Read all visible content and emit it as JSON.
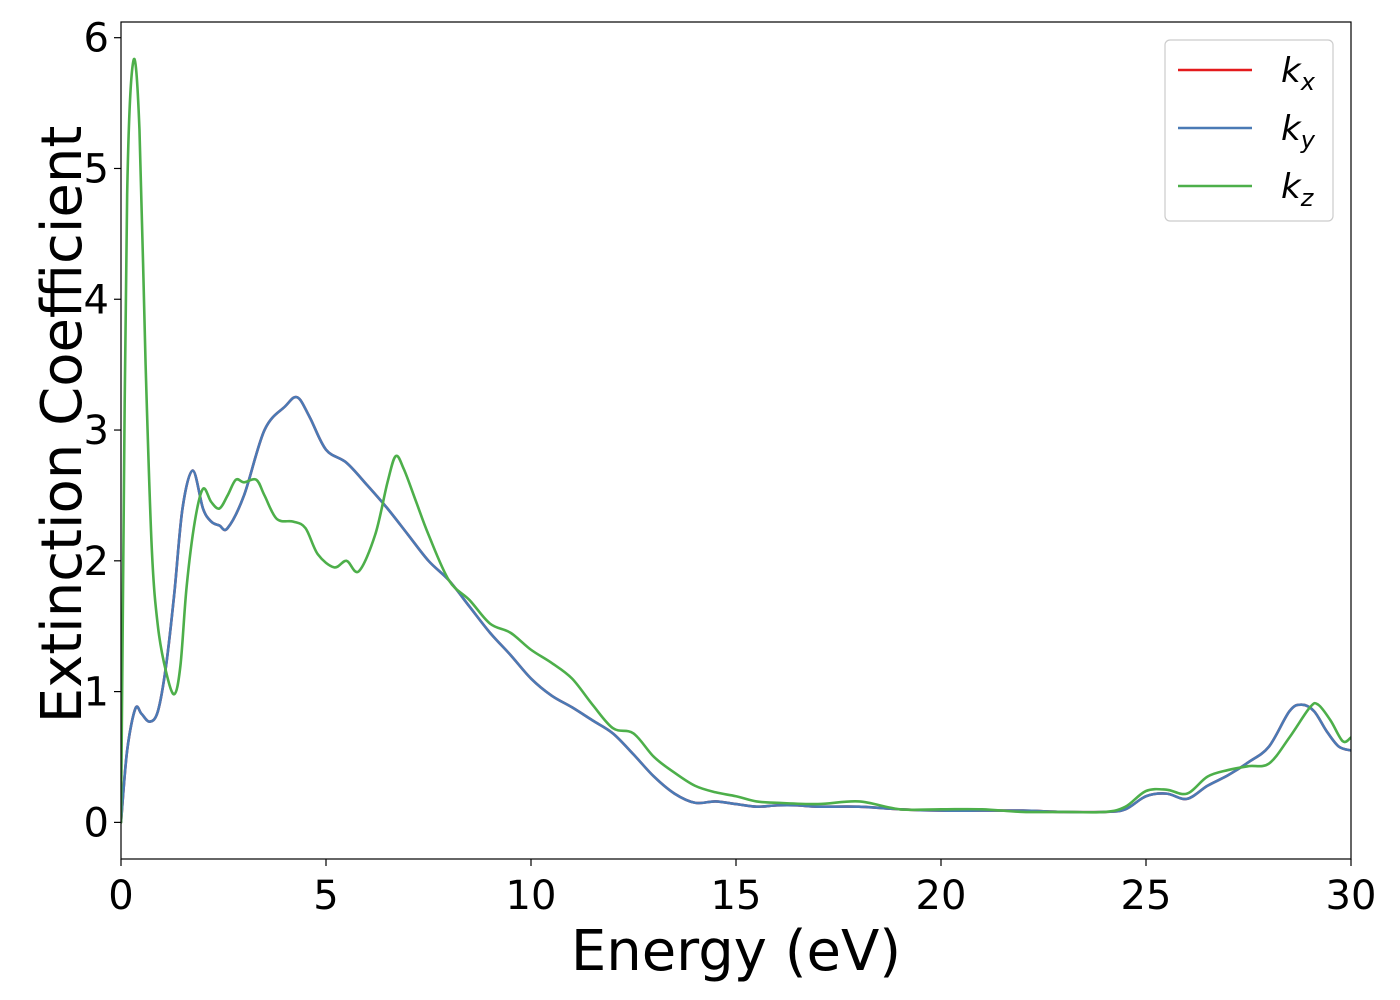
{
  "chart_data": {
    "type": "line",
    "xlabel": "Energy (eV)",
    "ylabel": "Extinction Coefficient",
    "xlim": [
      0,
      30
    ],
    "ylim": [
      -0.28,
      6.12
    ],
    "xticks": [
      0,
      5,
      10,
      15,
      20,
      25,
      30
    ],
    "yticks": [
      0,
      1,
      2,
      3,
      4,
      5,
      6
    ],
    "grid": false,
    "legend_position": "top-right",
    "series": [
      {
        "name": "k_x",
        "label_base": "k",
        "label_sub": "x",
        "color": "#e41a1c",
        "x": [
          0,
          0.15,
          0.35,
          0.5,
          0.7,
          0.9,
          1.1,
          1.3,
          1.5,
          1.75,
          2.0,
          2.2,
          2.4,
          2.6,
          3.0,
          3.5,
          4.0,
          4.3,
          4.6,
          5.0,
          5.5,
          6.0,
          6.5,
          7.0,
          7.5,
          8.0,
          8.5,
          9.0,
          9.5,
          10.0,
          10.5,
          11.0,
          11.5,
          12.0,
          12.5,
          13.0,
          13.5,
          14.0,
          14.5,
          15.0,
          15.5,
          16.0,
          16.5,
          17.0,
          18.0,
          19.0,
          20.0,
          21.0,
          22.0,
          23.0,
          24.0,
          24.5,
          25.0,
          25.5,
          26.0,
          26.5,
          27.0,
          27.5,
          28.0,
          28.5,
          28.8,
          29.1,
          29.4,
          29.7,
          30.0
        ],
        "y": [
          0.0,
          0.55,
          0.87,
          0.83,
          0.77,
          0.85,
          1.2,
          1.75,
          2.4,
          2.69,
          2.4,
          2.3,
          2.27,
          2.25,
          2.5,
          3.0,
          3.18,
          3.25,
          3.1,
          2.85,
          2.75,
          2.58,
          2.4,
          2.2,
          2.0,
          1.85,
          1.65,
          1.45,
          1.28,
          1.1,
          0.97,
          0.88,
          0.78,
          0.68,
          0.52,
          0.35,
          0.22,
          0.15,
          0.16,
          0.14,
          0.12,
          0.13,
          0.13,
          0.12,
          0.12,
          0.1,
          0.09,
          0.09,
          0.09,
          0.08,
          0.08,
          0.1,
          0.2,
          0.22,
          0.18,
          0.28,
          0.36,
          0.46,
          0.58,
          0.85,
          0.9,
          0.85,
          0.7,
          0.58,
          0.55
        ]
      },
      {
        "name": "k_y",
        "label_base": "k",
        "label_sub": "y",
        "color": "#4a7ab5",
        "x": [
          0,
          0.15,
          0.35,
          0.5,
          0.7,
          0.9,
          1.1,
          1.3,
          1.5,
          1.75,
          2.0,
          2.2,
          2.4,
          2.6,
          3.0,
          3.5,
          4.0,
          4.3,
          4.6,
          5.0,
          5.5,
          6.0,
          6.5,
          7.0,
          7.5,
          8.0,
          8.5,
          9.0,
          9.5,
          10.0,
          10.5,
          11.0,
          11.5,
          12.0,
          12.5,
          13.0,
          13.5,
          14.0,
          14.5,
          15.0,
          15.5,
          16.0,
          16.5,
          17.0,
          18.0,
          19.0,
          20.0,
          21.0,
          22.0,
          23.0,
          24.0,
          24.5,
          25.0,
          25.5,
          26.0,
          26.5,
          27.0,
          27.5,
          28.0,
          28.5,
          28.8,
          29.1,
          29.4,
          29.7,
          30.0
        ],
        "y": [
          0.0,
          0.55,
          0.87,
          0.83,
          0.77,
          0.85,
          1.2,
          1.75,
          2.4,
          2.69,
          2.4,
          2.3,
          2.27,
          2.25,
          2.5,
          3.0,
          3.18,
          3.25,
          3.1,
          2.85,
          2.75,
          2.58,
          2.4,
          2.2,
          2.0,
          1.85,
          1.65,
          1.45,
          1.28,
          1.1,
          0.97,
          0.88,
          0.78,
          0.68,
          0.52,
          0.35,
          0.22,
          0.15,
          0.16,
          0.14,
          0.12,
          0.13,
          0.13,
          0.12,
          0.12,
          0.1,
          0.09,
          0.09,
          0.09,
          0.08,
          0.08,
          0.1,
          0.2,
          0.22,
          0.18,
          0.28,
          0.36,
          0.46,
          0.58,
          0.85,
          0.9,
          0.85,
          0.7,
          0.58,
          0.55
        ]
      },
      {
        "name": "k_z",
        "label_base": "k",
        "label_sub": "z",
        "color": "#4daf4a",
        "x": [
          0,
          0.05,
          0.15,
          0.3,
          0.45,
          0.6,
          0.75,
          0.9,
          1.1,
          1.3,
          1.45,
          1.6,
          1.8,
          2.0,
          2.2,
          2.4,
          2.6,
          2.8,
          3.0,
          3.3,
          3.5,
          3.8,
          4.2,
          4.5,
          4.8,
          5.2,
          5.5,
          5.8,
          6.2,
          6.5,
          6.7,
          6.9,
          7.2,
          7.5,
          8.0,
          8.5,
          9.0,
          9.5,
          10.0,
          10.5,
          11.0,
          11.5,
          12.0,
          12.5,
          13.0,
          13.5,
          14.0,
          14.5,
          15.0,
          15.5,
          16.0,
          17.0,
          18.0,
          19.0,
          20.0,
          21.0,
          22.0,
          23.0,
          24.0,
          24.5,
          25.0,
          25.5,
          26.0,
          26.5,
          27.0,
          27.5,
          28.0,
          28.5,
          29.0,
          29.2,
          29.5,
          29.8,
          30.0
        ],
        "y": [
          0.0,
          1.8,
          4.8,
          5.82,
          5.3,
          3.5,
          2.1,
          1.5,
          1.15,
          0.98,
          1.2,
          1.8,
          2.3,
          2.55,
          2.45,
          2.4,
          2.5,
          2.62,
          2.6,
          2.62,
          2.5,
          2.32,
          2.3,
          2.25,
          2.05,
          1.95,
          2.0,
          1.92,
          2.2,
          2.6,
          2.8,
          2.7,
          2.45,
          2.2,
          1.85,
          1.7,
          1.52,
          1.45,
          1.32,
          1.22,
          1.1,
          0.9,
          0.72,
          0.68,
          0.5,
          0.38,
          0.28,
          0.23,
          0.2,
          0.16,
          0.15,
          0.14,
          0.16,
          0.1,
          0.1,
          0.1,
          0.08,
          0.08,
          0.08,
          0.12,
          0.24,
          0.25,
          0.22,
          0.35,
          0.4,
          0.43,
          0.45,
          0.65,
          0.88,
          0.9,
          0.78,
          0.62,
          0.65
        ]
      }
    ]
  }
}
